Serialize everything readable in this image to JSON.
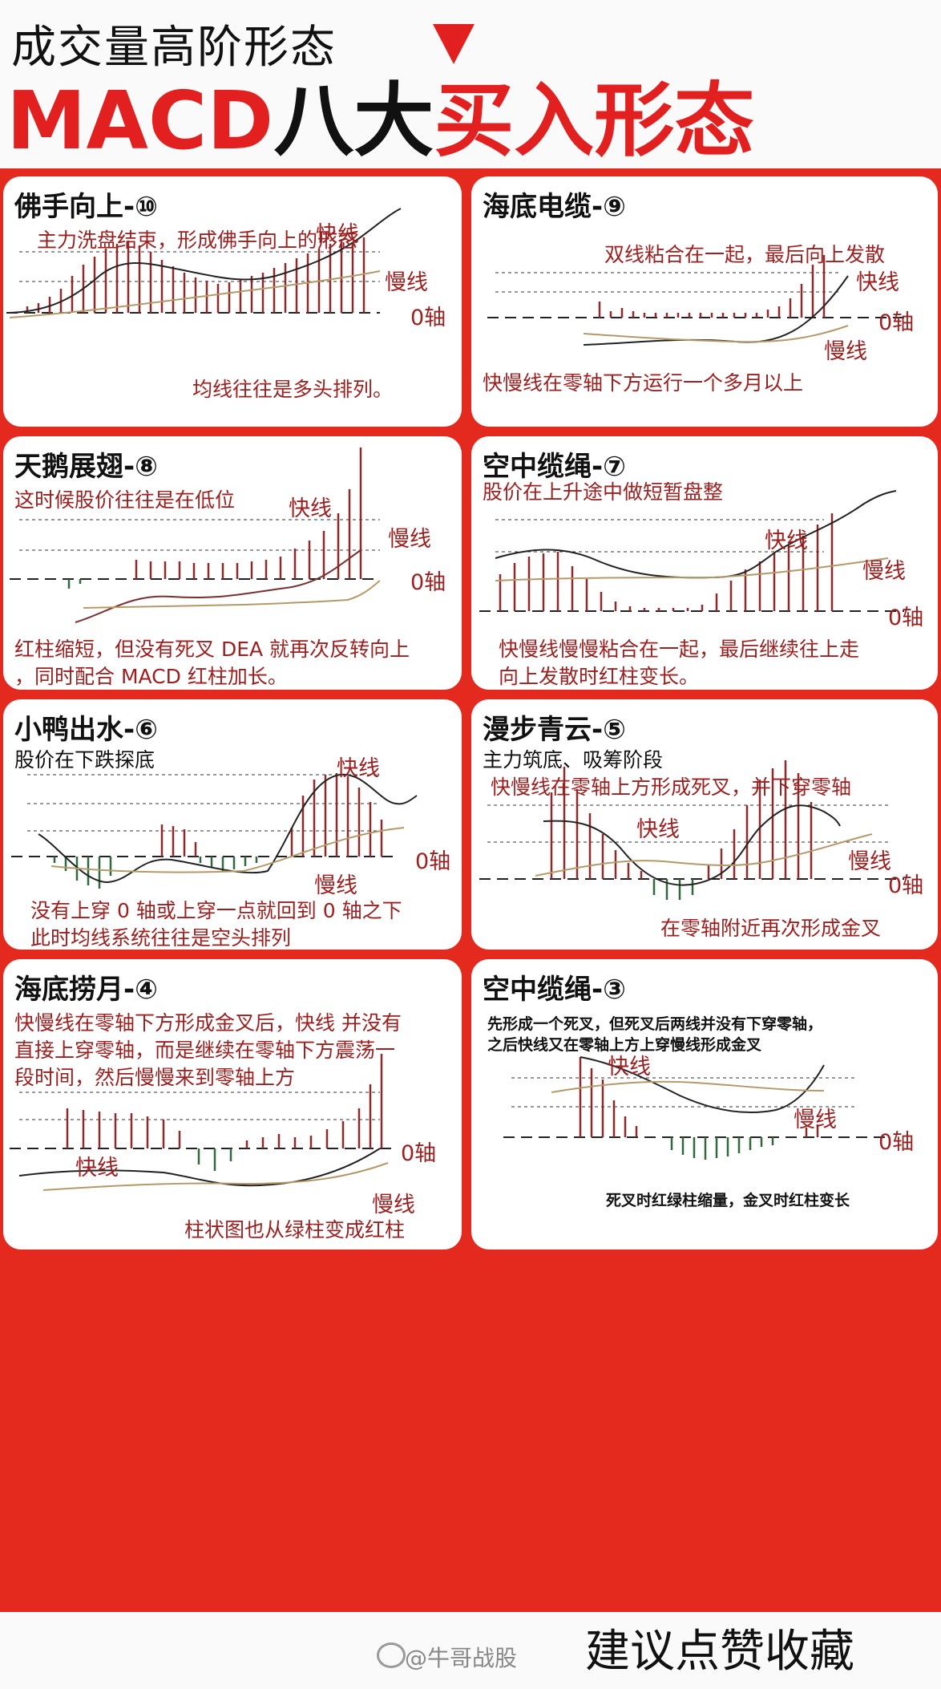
{
  "header": {
    "line1": "成交量高阶形态",
    "line2_red1": "MACD",
    "line2_black": "八大",
    "line2_red2": "买入形态"
  },
  "axis_label": "0轴",
  "fast_label": "快线",
  "slow_label": "慢线",
  "panels": [
    {
      "title": "佛手向上-⑩",
      "texts": [
        "主力洗盘结束，形成佛手向上的形态",
        "均线往往是多头排列。"
      ]
    },
    {
      "title": "海底电缆-⑨",
      "texts": [
        "双线粘合在一起，最后向上发散",
        "快慢线在零轴下方运行一个多月以上"
      ]
    },
    {
      "title": "天鹅展翅-⑧",
      "texts": [
        "这时候股价往往是在低位",
        "红柱缩短，但没有死叉 DEA 就再次反转向上",
        "，同时配合 MACD 红柱加长。"
      ]
    },
    {
      "title": "空中缆绳-⑦",
      "texts": [
        "股价在上升途中做短暂盘整",
        "快慢线慢慢粘合在一起，最后继续往上走",
        "向上发散时红柱变长。"
      ]
    },
    {
      "title": "小鸭出水-⑥",
      "texts": [
        "股价在下跌探底",
        "没有上穿 0 轴或上穿一点就回到 0 轴之下",
        "此时均线系统往往是空头排列"
      ]
    },
    {
      "title": "漫步青云-⑤",
      "texts": [
        "主力筑底、吸筹阶段",
        "快慢线在零轴上方形成死叉，并下穿零轴",
        "在零轴附近再次形成金叉"
      ]
    },
    {
      "title": "海底捞月-④",
      "texts": [
        "快慢线在零轴下方形成金叉后，快线 并没有",
        "直接上穿零轴，而是继续在零轴下方震荡一",
        "段时间，然后慢慢来到零轴上方",
        "柱状图也从绿柱变成红柱"
      ]
    },
    {
      "title": "空中缆绳-③",
      "texts": [
        "先形成一个死叉，但死叉后两线并没有下穿零轴，",
        "之后快线又在零轴上方上穿慢线形成金叉",
        "死叉时红绿柱缩量，金叉时红柱变长"
      ]
    }
  ],
  "footer": {
    "watermark": "@牛哥战股",
    "slogan": "建议点赞收藏"
  },
  "colors": {
    "frame": "#e42a1f",
    "red_text": "#9b2020",
    "bar_red": "#8e2a2a",
    "bar_green": "#2e6a3a",
    "slow_line": "#b59a68"
  }
}
